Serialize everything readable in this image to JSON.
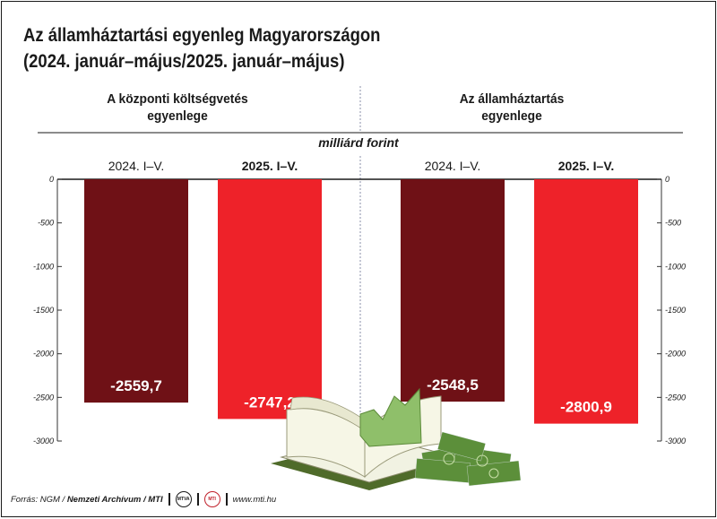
{
  "title": {
    "line1": "Az államháztartási egyenleg Magyarországon",
    "line2": "(2024. január–május/2025. január–május)"
  },
  "panels": [
    {
      "title_line1": "A központi költségvetés",
      "title_line2": "egyenlege"
    },
    {
      "title_line1": "Az államháztartás",
      "title_line2": "egyenlege"
    }
  ],
  "unit_label": "milliárd forint",
  "footer": {
    "source_prefix": "Forrás: NGM / ",
    "source_bold": "Nemzeti Archívum / MTI",
    "logo1": "MTVA",
    "logo2": "MTI",
    "url": "www.mti.hu"
  },
  "chart_data": {
    "type": "bar",
    "ylim": [
      -3000,
      0
    ],
    "yticks": [
      0,
      -500,
      -1000,
      -1500,
      -2000,
      -2500,
      -3000
    ],
    "grid": false,
    "colors": {
      "2024": "#6f1116",
      "2025": "#ee2229"
    },
    "groups": [
      {
        "name": "A központi költségvetés egyenlege",
        "bars": [
          {
            "category": "2024. I–V.",
            "value": -2559.7,
            "label": "-2559,7",
            "color": "#6f1116"
          },
          {
            "category": "2025. I–V.",
            "value": -2747.2,
            "label": "-2747,2",
            "color": "#ee2229"
          }
        ]
      },
      {
        "name": "Az államháztartás egyenlege",
        "bars": [
          {
            "category": "2024. I–V.",
            "value": -2548.5,
            "label": "-2548,5",
            "color": "#6f1116"
          },
          {
            "category": "2025. I–V.",
            "value": -2800.9,
            "label": "-2800,9",
            "color": "#ee2229"
          }
        ]
      }
    ]
  }
}
